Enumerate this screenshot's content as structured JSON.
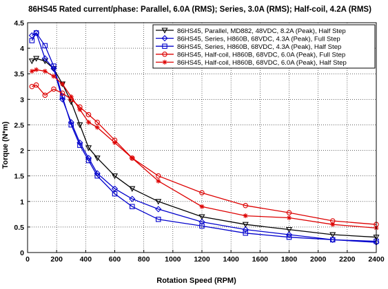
{
  "chart_data": {
    "type": "line",
    "title": "86HS45 Rated current/phase: Parallel, 6.0A (RMS); Series, 3.0A (RMS); Half-coil, 4.2A (RMS)",
    "xlabel": "Rotation Speed (RPM)",
    "ylabel": "Torque (N*m)",
    "xlim": [
      0,
      2400
    ],
    "ylim": [
      0,
      4.5
    ],
    "xticks": [
      0,
      200,
      400,
      600,
      800,
      1000,
      1200,
      1400,
      1600,
      1800,
      2000,
      2200,
      2400
    ],
    "yticks": [
      0,
      0.5,
      1,
      1.5,
      2,
      2.5,
      3,
      3.5,
      4,
      4.5
    ],
    "grid": true,
    "legend_position": "top-right",
    "series": [
      {
        "name": "86HS45, Parallel, MD882, 48VDC, 8.2A (Peak), Half Step",
        "color": "#000000",
        "marker": "triangle-down",
        "x": [
          30,
          60,
          120,
          180,
          240,
          300,
          360,
          420,
          480,
          600,
          720,
          900,
          1200,
          1500,
          1800,
          2100,
          2400
        ],
        "y": [
          3.75,
          3.8,
          3.75,
          3.6,
          3.3,
          2.95,
          2.5,
          2.05,
          1.85,
          1.5,
          1.25,
          1.0,
          0.7,
          0.55,
          0.45,
          0.35,
          0.3
        ]
      },
      {
        "name": "86HS45, Series, H860B, 68VDC, 4.3A (Peak), Full Step",
        "color": "#0000cc",
        "marker": "diamond",
        "x": [
          30,
          60,
          120,
          180,
          240,
          300,
          360,
          420,
          480,
          600,
          720,
          900,
          1200,
          1500,
          1800,
          2100,
          2400
        ],
        "y": [
          4.25,
          4.3,
          3.8,
          3.6,
          3.0,
          2.55,
          2.15,
          1.85,
          1.55,
          1.25,
          1.05,
          0.85,
          0.6,
          0.45,
          0.35,
          0.25,
          0.2
        ]
      },
      {
        "name": "86HS45, Series, H860B, 68VDC, 4.3A (Peak), Half Step",
        "color": "#0000cc",
        "marker": "square",
        "x": [
          30,
          60,
          120,
          180,
          240,
          300,
          360,
          420,
          480,
          600,
          720,
          900,
          1200,
          1500,
          1800,
          2100,
          2400
        ],
        "y": [
          4.15,
          4.3,
          4.05,
          3.65,
          3.05,
          2.5,
          2.1,
          1.8,
          1.5,
          1.15,
          0.9,
          0.65,
          0.52,
          0.38,
          0.3,
          0.25,
          0.22
        ]
      },
      {
        "name": "86HS45, Half-coil, H860B, 68VDC, 6.0A (Peak), Full Step",
        "color": "#dd0000",
        "marker": "circle",
        "x": [
          30,
          60,
          120,
          180,
          240,
          300,
          360,
          420,
          480,
          600,
          720,
          900,
          1200,
          1500,
          1800,
          2100,
          2400
        ],
        "y": [
          3.25,
          3.28,
          3.08,
          3.2,
          3.12,
          3.0,
          2.85,
          2.7,
          2.55,
          2.2,
          1.85,
          1.5,
          1.17,
          0.92,
          0.78,
          0.62,
          0.55
        ]
      },
      {
        "name": "86HS45, Half-coil, H860B, 68VDC, 6.0A (Peak), Half Step",
        "color": "#dd0000",
        "marker": "star",
        "x": [
          30,
          60,
          120,
          180,
          240,
          300,
          360,
          420,
          480,
          600,
          720,
          900,
          1200,
          1500,
          1800,
          2100,
          2400
        ],
        "y": [
          3.55,
          3.58,
          3.55,
          3.45,
          3.3,
          3.05,
          2.8,
          2.55,
          2.45,
          2.15,
          1.85,
          1.4,
          0.9,
          0.72,
          0.68,
          0.55,
          0.48
        ]
      }
    ]
  }
}
